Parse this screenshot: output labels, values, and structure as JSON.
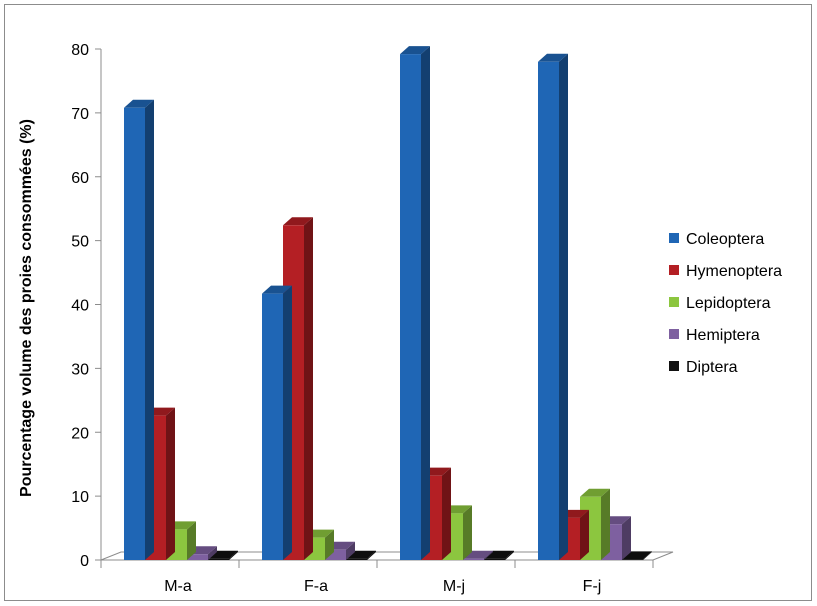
{
  "chart_data": {
    "type": "bar",
    "ylabel": "Pourcentage  volume des proies consommées (%)",
    "xlabel": "",
    "ylim": [
      0,
      80
    ],
    "yticks": [
      0,
      10,
      20,
      30,
      40,
      50,
      60,
      70,
      80
    ],
    "grid": false,
    "legend_position": "right",
    "categories": [
      "M-a",
      "F-a",
      "M-j",
      "F-j"
    ],
    "series": [
      {
        "name": "Coleoptera",
        "color": "#1F66B5",
        "values": [
          70.8,
          41.7,
          79.2,
          78.0
        ]
      },
      {
        "name": "Hymenoptera",
        "color": "#B41F24",
        "values": [
          22.6,
          52.4,
          13.2,
          6.6
        ]
      },
      {
        "name": "Lepidoptera",
        "color": "#8CC63F",
        "values": [
          4.8,
          3.5,
          7.3,
          9.9
        ]
      },
      {
        "name": "Hemiptera",
        "color": "#7E60A0",
        "values": [
          0.9,
          1.6,
          0.2,
          5.6
        ]
      },
      {
        "name": "Diptera",
        "color": "#111111",
        "values": [
          0.2,
          0.2,
          0.2,
          0.1
        ]
      }
    ]
  }
}
